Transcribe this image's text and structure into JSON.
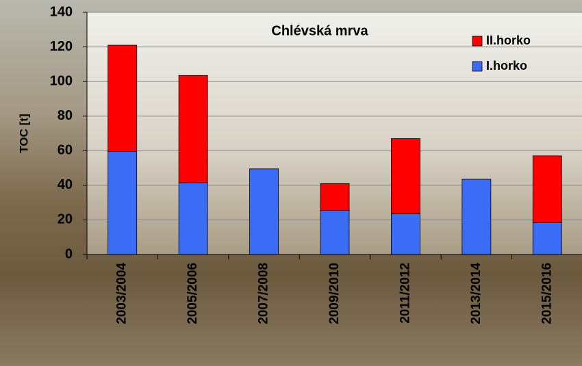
{
  "chart_data": {
    "type": "stacked_bar",
    "title": "Chlévská mrva",
    "y_label": "TOC  [t]",
    "categories": [
      "2003/2004",
      "2005/2006",
      "2007/2008",
      "2009/2010",
      "2011/2012",
      "2013/2014",
      "2015/2016"
    ],
    "series": [
      {
        "name": "I.horko",
        "color": "#3b6cf5",
        "values": [
          59.5,
          41.5,
          49.5,
          25.5,
          23.5,
          43.5,
          18.5
        ]
      },
      {
        "name": "II.horko",
        "color": "#ff0000",
        "values": [
          61.5,
          62,
          0,
          15.5,
          43.5,
          0,
          38.5
        ]
      }
    ],
    "ylim": [
      0,
      140
    ],
    "yticks": [
      0,
      20,
      40,
      60,
      80,
      100,
      120,
      140
    ],
    "grid": true
  }
}
